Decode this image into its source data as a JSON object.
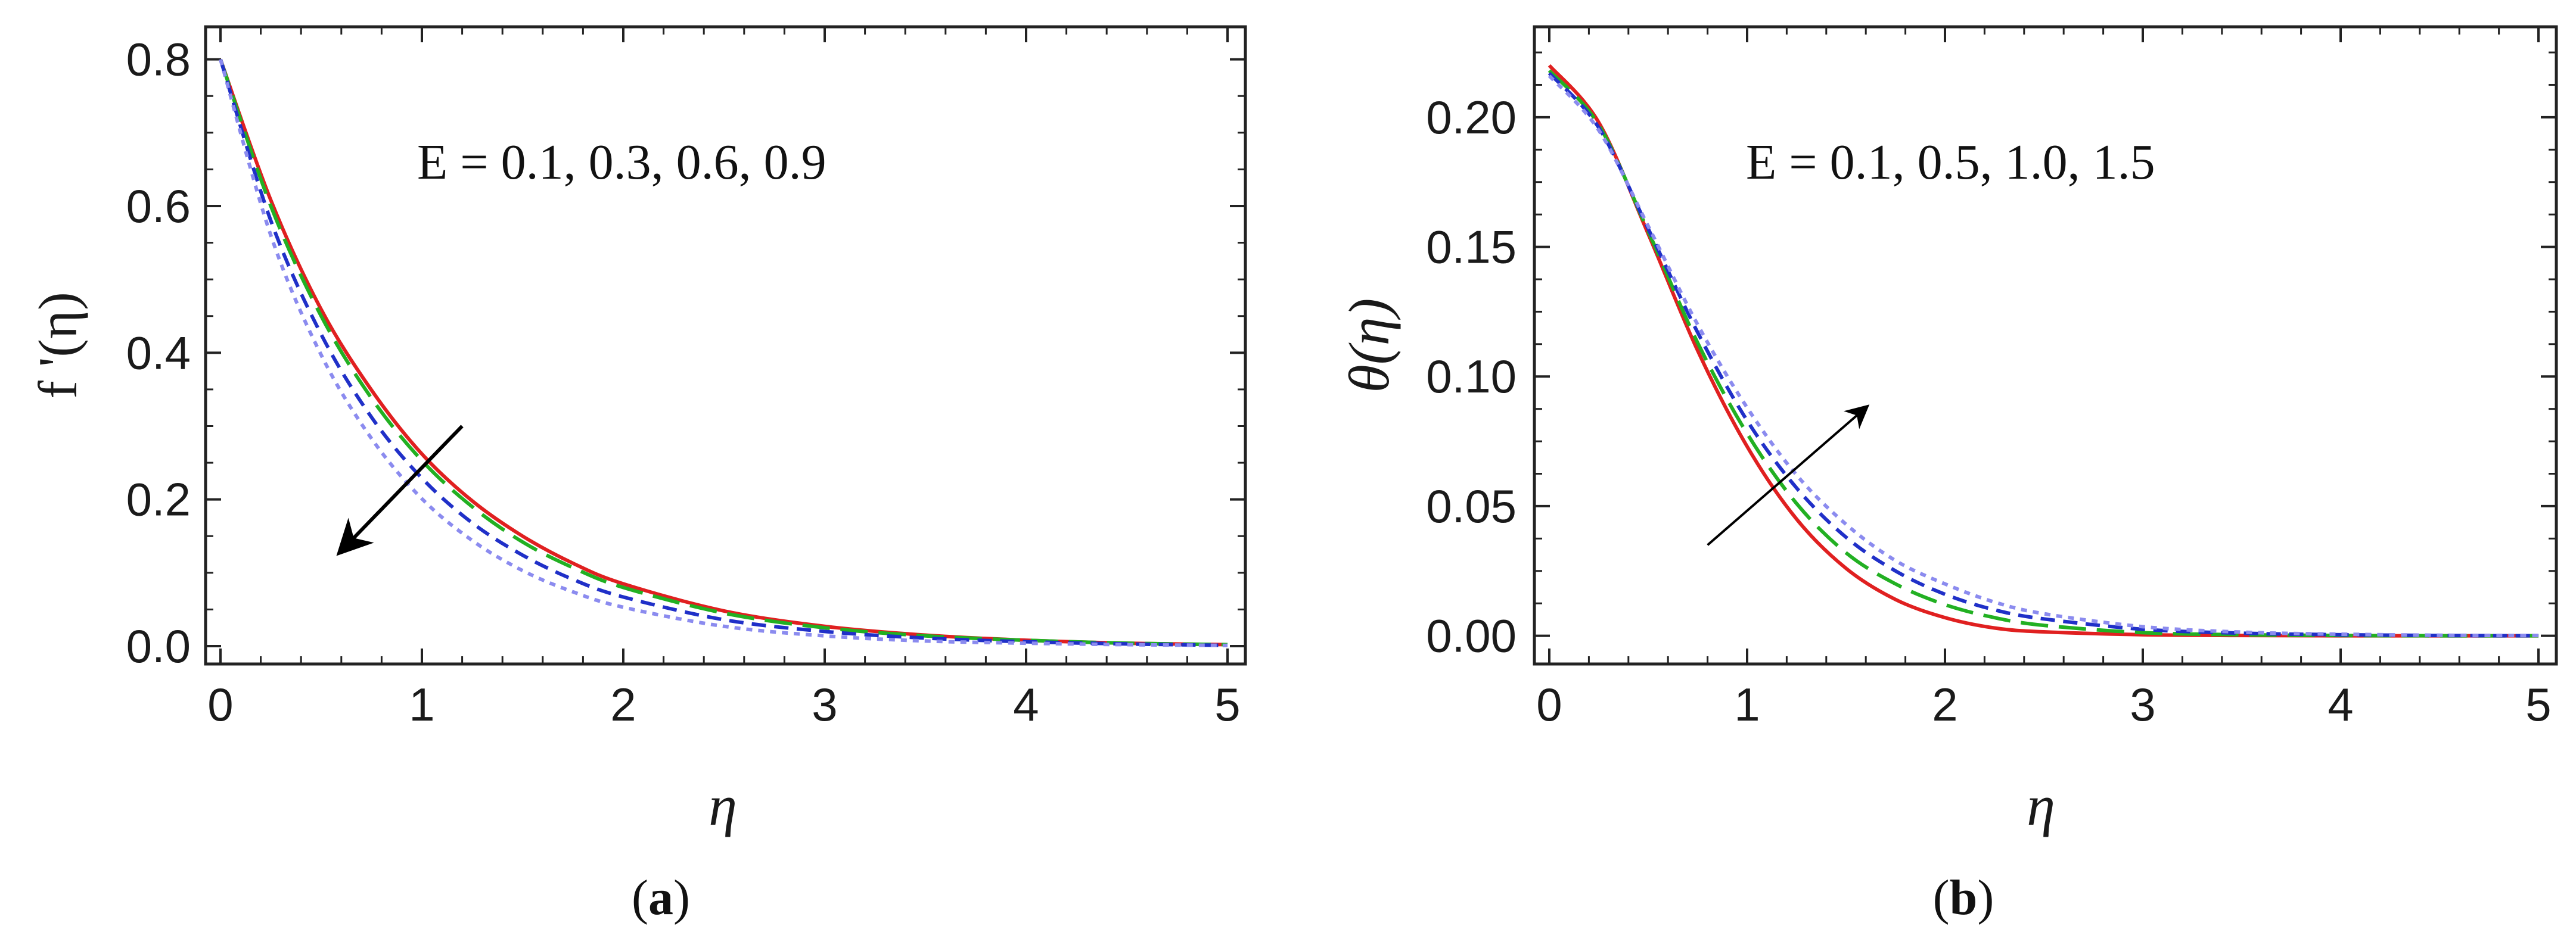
{
  "chart_data": [
    {
      "type": "line",
      "panel_label": "a",
      "xlabel": "η",
      "ylabel": "f '(η)",
      "annotation": "E = 0.1, 0.3, 0.6, 0.9",
      "xlim": [
        0,
        5
      ],
      "ylim": [
        0,
        0.82
      ],
      "x_ticks": [
        "0",
        "1",
        "2",
        "3",
        "4",
        "5"
      ],
      "y_ticks": [
        "0.0",
        "0.2",
        "0.4",
        "0.6",
        "0.8"
      ],
      "x_tick_values": [
        0,
        1,
        2,
        3,
        4,
        5
      ],
      "y_tick_values": [
        0,
        0.2,
        0.4,
        0.6,
        0.8
      ],
      "arrow": {
        "from": [
          1.2,
          0.3
        ],
        "to": [
          0.6,
          0.13
        ],
        "color": "#000000",
        "direction": "increasing E"
      },
      "x": [
        0,
        0.25,
        0.5,
        0.75,
        1.0,
        1.25,
        1.5,
        1.75,
        2.0,
        2.5,
        3.0,
        3.5,
        4.0,
        4.5,
        5.0
      ],
      "series": [
        {
          "color": "#e02020",
          "dash": "solid",
          "values": [
            0.8,
            0.608,
            0.459,
            0.349,
            0.262,
            0.198,
            0.15,
            0.113,
            0.085,
            0.048,
            0.027,
            0.015,
            0.008,
            0.004,
            0.002
          ]
        },
        {
          "color": "#22b022",
          "dash": "long",
          "values": [
            0.8,
            0.6,
            0.45,
            0.338,
            0.253,
            0.19,
            0.142,
            0.107,
            0.08,
            0.045,
            0.025,
            0.014,
            0.008,
            0.004,
            0.002
          ]
        },
        {
          "color": "#2030c8",
          "dash": "medium",
          "values": [
            0.8,
            0.58,
            0.425,
            0.312,
            0.229,
            0.168,
            0.124,
            0.091,
            0.067,
            0.036,
            0.02,
            0.011,
            0.006,
            0.003,
            0.001
          ]
        },
        {
          "color": "#8b8bef",
          "dash": "dotted",
          "values": [
            0.8,
            0.56,
            0.397,
            0.283,
            0.201,
            0.144,
            0.103,
            0.074,
            0.053,
            0.027,
            0.014,
            0.007,
            0.004,
            0.002,
            0.001
          ]
        }
      ]
    },
    {
      "type": "line",
      "panel_label": "b",
      "xlabel": "η",
      "ylabel": "θ(η)",
      "annotation": "E = 0.1, 0.5, 1.0, 1.5",
      "xlim": [
        0,
        5
      ],
      "ylim": [
        -0.004,
        0.228
      ],
      "x_ticks": [
        "0",
        "1",
        "2",
        "3",
        "4",
        "5"
      ],
      "y_ticks": [
        "0.00",
        "0.05",
        "0.10",
        "0.15",
        "0.20"
      ],
      "x_tick_values": [
        0,
        1,
        2,
        3,
        4,
        5
      ],
      "y_tick_values": [
        0,
        0.05,
        0.1,
        0.15,
        0.2
      ],
      "arrow": {
        "from": [
          0.8,
          0.035
        ],
        "to": [
          1.6,
          0.088
        ],
        "color": "#000000",
        "direction": "increasing E"
      },
      "x": [
        0,
        0.25,
        0.5,
        0.75,
        1.0,
        1.25,
        1.5,
        1.75,
        2.0,
        2.25,
        2.5,
        3.0,
        3.5,
        4.0,
        4.5,
        5.0
      ],
      "series": [
        {
          "color": "#e02020",
          "dash": "solid",
          "values": [
            0.22,
            0.198,
            0.155,
            0.11,
            0.073,
            0.045,
            0.026,
            0.014,
            0.007,
            0.003,
            0.0015,
            0.0004,
            0.0001,
            0.0,
            0.0,
            0.0
          ]
        },
        {
          "color": "#22b022",
          "dash": "long",
          "values": [
            0.218,
            0.197,
            0.156,
            0.113,
            0.078,
            0.051,
            0.032,
            0.02,
            0.012,
            0.007,
            0.004,
            0.0012,
            0.0004,
            0.0001,
            0.0,
            0.0
          ]
        },
        {
          "color": "#2030c8",
          "dash": "medium",
          "values": [
            0.217,
            0.196,
            0.157,
            0.117,
            0.083,
            0.057,
            0.038,
            0.025,
            0.016,
            0.01,
            0.0065,
            0.0025,
            0.001,
            0.0004,
            0.0001,
            0.0
          ]
        },
        {
          "color": "#8b8bef",
          "dash": "dotted",
          "values": [
            0.216,
            0.195,
            0.158,
            0.12,
            0.088,
            0.062,
            0.043,
            0.029,
            0.02,
            0.013,
            0.0085,
            0.0035,
            0.0014,
            0.0006,
            0.0002,
            0.0001
          ]
        }
      ]
    }
  ]
}
